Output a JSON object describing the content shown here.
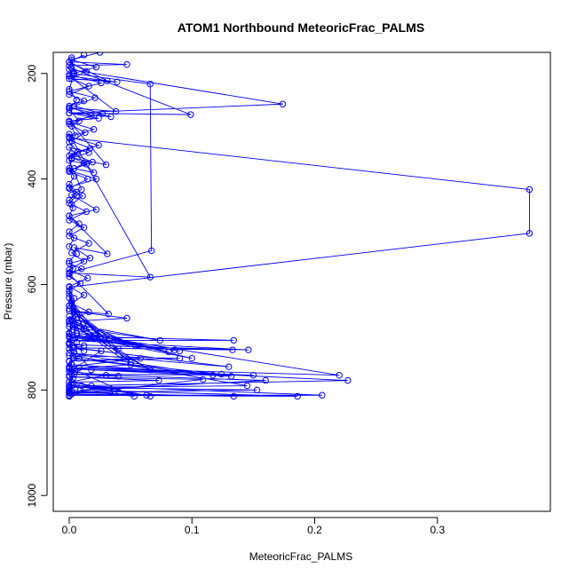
{
  "chart_data": {
    "type": "line",
    "title": "ATOM1 Northbound MeteoricFrac_PALMS",
    "xlabel": "MeteoricFrac_PALMS",
    "ylabel": "Pressure (mbar)",
    "xlim": [
      -0.013,
      0.392
    ],
    "ylim": [
      1030,
      160
    ],
    "y_reversed": true,
    "grid": false,
    "legend": "none",
    "x_ticks": [
      0.0,
      0.1,
      0.2,
      0.3
    ],
    "x_tick_labels": [
      "0.0",
      "0.1",
      "0.2",
      "0.3"
    ],
    "y_ticks": [
      200,
      400,
      600,
      800,
      1000
    ],
    "y_tick_labels": [
      "200",
      "400",
      "600",
      "800",
      "1000"
    ],
    "series": [
      {
        "marker": "open-circle",
        "points": [
          [
            0.0,
            812
          ],
          [
            0.0,
            805
          ],
          [
            0.0,
            798
          ],
          [
            0.0,
            792
          ],
          [
            0.0,
            785
          ],
          [
            0.003,
            778
          ],
          [
            0.0,
            772
          ],
          [
            0.005,
            765
          ],
          [
            0.0,
            758
          ],
          [
            0.002,
            752
          ],
          [
            0.0,
            746
          ],
          [
            0.008,
            740
          ],
          [
            0.0,
            735
          ],
          [
            0.004,
            728
          ],
          [
            0.0,
            722
          ],
          [
            0.012,
            716
          ],
          [
            0.0,
            710
          ],
          [
            0.003,
            704
          ],
          [
            0.0,
            698
          ],
          [
            0.006,
            692
          ],
          [
            0.22,
            772
          ],
          [
            0.008,
            758
          ],
          [
            0.227,
            782
          ],
          [
            0.01,
            792
          ],
          [
            0.206,
            810
          ],
          [
            0.0,
            810
          ],
          [
            0.186,
            812
          ],
          [
            0.009,
            800
          ],
          [
            0.16,
            782
          ],
          [
            0.004,
            770
          ],
          [
            0.15,
            772
          ],
          [
            0.0,
            760
          ],
          [
            0.132,
            774
          ],
          [
            0.002,
            752
          ],
          [
            0.124,
            770
          ],
          [
            0.003,
            740
          ],
          [
            0.117,
            772
          ],
          [
            0.0,
            730
          ],
          [
            0.13,
            756
          ],
          [
            0.003,
            720
          ],
          [
            0.133,
            724
          ],
          [
            0.0,
            714
          ],
          [
            0.146,
            724
          ],
          [
            0.002,
            706
          ],
          [
            0.134,
            706
          ],
          [
            0.0,
            698
          ],
          [
            0.086,
            724
          ],
          [
            0.0,
            700
          ],
          [
            0.09,
            726
          ],
          [
            0.0,
            694
          ],
          [
            0.1,
            740
          ],
          [
            0.003,
            686
          ],
          [
            0.081,
            728
          ],
          [
            0.0,
            680
          ],
          [
            0.074,
            706
          ],
          [
            0.0,
            674
          ],
          [
            0.066,
            762
          ],
          [
            0.002,
            668
          ],
          [
            0.054,
            716
          ],
          [
            0.0,
            660
          ],
          [
            0.05,
            748
          ],
          [
            0.004,
            652
          ],
          [
            0.04,
            722
          ],
          [
            0.0,
            646
          ],
          [
            0.033,
            702
          ],
          [
            0.0,
            640
          ],
          [
            0.025,
            700
          ],
          [
            0.002,
            632
          ],
          [
            0.02,
            702
          ],
          [
            0.0,
            625
          ],
          [
            0.015,
            702
          ],
          [
            0.0,
            618
          ],
          [
            0.009,
            702
          ],
          [
            0.0,
            612
          ],
          [
            0.006,
            710
          ],
          [
            0.0,
            605
          ],
          [
            0.375,
            503
          ],
          [
            0.375,
            420
          ],
          [
            0.0,
            322
          ],
          [
            0.0,
            315
          ],
          [
            0.066,
            586
          ],
          [
            0.0,
            578
          ],
          [
            0.067,
            536
          ],
          [
            0.066,
            220
          ],
          [
            0.003,
            200
          ],
          [
            0.0,
            192
          ],
          [
            0.174,
            258
          ],
          [
            0.0,
            275
          ],
          [
            0.099,
            278
          ],
          [
            0.002,
            190
          ],
          [
            0.0,
            185
          ],
          [
            0.047,
            183
          ],
          [
            0.0,
            178
          ],
          [
            0.031,
            214
          ],
          [
            0.0,
            210
          ],
          [
            0.039,
            216
          ],
          [
            0.0,
            205
          ],
          [
            0.038,
            272
          ],
          [
            0.0,
            265
          ],
          [
            0.034,
            282
          ],
          [
            0.0,
            275
          ],
          [
            0.024,
            285
          ],
          [
            0.0,
            290
          ],
          [
            0.03,
            373
          ],
          [
            0.002,
            360
          ],
          [
            0.016,
            350
          ],
          [
            0.0,
            340
          ],
          [
            0.02,
            388
          ],
          [
            0.004,
            380
          ],
          [
            0.014,
            372
          ],
          [
            0.0,
            365
          ],
          [
            0.01,
            420
          ],
          [
            0.002,
            430
          ],
          [
            0.022,
            458
          ],
          [
            0.0,
            470
          ],
          [
            0.031,
            542
          ],
          [
            0.004,
            530
          ],
          [
            0.017,
            550
          ],
          [
            0.0,
            560
          ],
          [
            0.01,
            570
          ],
          [
            0.0,
            580
          ],
          [
            0.032,
            656
          ],
          [
            0.0,
            650
          ],
          [
            0.047,
            664
          ],
          [
            0.0,
            670
          ],
          [
            0.05,
            752
          ],
          [
            0.002,
            760
          ],
          [
            0.053,
            812
          ],
          [
            0.0,
            800
          ],
          [
            0.066,
            812
          ],
          [
            0.003,
            790
          ],
          [
            0.037,
            802
          ],
          [
            0.0,
            792
          ],
          [
            0.018,
            792
          ],
          [
            0.0,
            785
          ],
          [
            0.03,
            772
          ],
          [
            0.002,
            770
          ],
          [
            0.04,
            774
          ],
          [
            0.0,
            765
          ],
          [
            0.026,
            726
          ],
          [
            0.004,
            720
          ],
          [
            0.012,
            726
          ],
          [
            0.0,
            712
          ],
          [
            0.018,
            762
          ],
          [
            0.0,
            756
          ],
          [
            0.058,
            740
          ],
          [
            0.0,
            745
          ],
          [
            0.09,
            740
          ],
          [
            0.003,
            735
          ],
          [
            0.145,
            792
          ],
          [
            0.0,
            795
          ],
          [
            0.153,
            800
          ],
          [
            0.0,
            805
          ],
          [
            0.134,
            812
          ],
          [
            0.002,
            808
          ],
          [
            0.109,
            780
          ],
          [
            0.0,
            775
          ],
          [
            0.073,
            782
          ],
          [
            0.002,
            785
          ],
          [
            0.063,
            810
          ],
          [
            0.0,
            803
          ],
          [
            0.002,
            802
          ],
          [
            0.0,
            806
          ]
        ]
      },
      {
        "marker": "open-circle",
        "points": [
          [
            0.002,
            170
          ],
          [
            0.004,
            200
          ],
          [
            0.0,
            230
          ],
          [
            0.006,
            250
          ],
          [
            0.0,
            268
          ],
          [
            0.008,
            290
          ],
          [
            0.002,
            300
          ],
          [
            0.005,
            318
          ],
          [
            0.0,
            330
          ],
          [
            0.007,
            348
          ],
          [
            0.002,
            362
          ],
          [
            0.0,
            380
          ],
          [
            0.004,
            395
          ],
          [
            0.0,
            410
          ],
          [
            0.006,
            425
          ],
          [
            0.0,
            440
          ],
          [
            0.003,
            455
          ],
          [
            0.0,
            470
          ],
          [
            0.008,
            485
          ],
          [
            0.0,
            500
          ],
          [
            0.004,
            512
          ],
          [
            0.0,
            528
          ],
          [
            0.006,
            542
          ],
          [
            0.0,
            556
          ],
          [
            0.003,
            570
          ],
          [
            0.0,
            585
          ],
          [
            0.009,
            598
          ],
          [
            0.0,
            612
          ],
          [
            0.004,
            626
          ],
          [
            0.0,
            640
          ],
          [
            0.006,
            655
          ],
          [
            0.0,
            668
          ],
          [
            0.003,
            680
          ],
          [
            0.0,
            692
          ]
        ]
      },
      {
        "marker": "open-circle",
        "points": [
          [
            0.012,
            165
          ],
          [
            0.0,
            178
          ],
          [
            0.014,
            196
          ],
          [
            0.002,
            210
          ],
          [
            0.016,
            224
          ],
          [
            0.0,
            240
          ],
          [
            0.012,
            252
          ],
          [
            0.0,
            262
          ],
          [
            0.018,
            280
          ],
          [
            0.0,
            296
          ],
          [
            0.013,
            312
          ],
          [
            0.002,
            328
          ],
          [
            0.017,
            342
          ],
          [
            0.0,
            356
          ],
          [
            0.012,
            370
          ],
          [
            0.0,
            386
          ],
          [
            0.015,
            400
          ],
          [
            0.0,
            418
          ],
          [
            0.011,
            432
          ],
          [
            0.002,
            448
          ],
          [
            0.014,
            462
          ],
          [
            0.0,
            478
          ],
          [
            0.012,
            492
          ],
          [
            0.0,
            508
          ],
          [
            0.016,
            522
          ],
          [
            0.002,
            540
          ],
          [
            0.012,
            556
          ],
          [
            0.0,
            572
          ],
          [
            0.015,
            588
          ],
          [
            0.0,
            604
          ],
          [
            0.012,
            620
          ],
          [
            0.002,
            636
          ],
          [
            0.016,
            652
          ],
          [
            0.0,
            668
          ],
          [
            0.012,
            684
          ]
        ]
      },
      {
        "marker": "open-circle",
        "points": [
          [
            0.025,
            160
          ],
          [
            0.002,
            174
          ],
          [
            0.022,
            188
          ],
          [
            0.0,
            202
          ],
          [
            0.026,
            218
          ],
          [
            0.0,
            234
          ],
          [
            0.021,
            246
          ],
          [
            0.004,
            262
          ],
          [
            0.027,
            276
          ],
          [
            0.0,
            292
          ],
          [
            0.02,
            306
          ],
          [
            0.0,
            320
          ],
          [
            0.024,
            336
          ],
          [
            0.002,
            352
          ],
          [
            0.019,
            368
          ],
          [
            0.0,
            384
          ],
          [
            0.022,
            400
          ],
          [
            0.0,
            416
          ],
          [
            0.006,
            432
          ],
          [
            0.0,
            446
          ]
        ]
      }
    ]
  }
}
